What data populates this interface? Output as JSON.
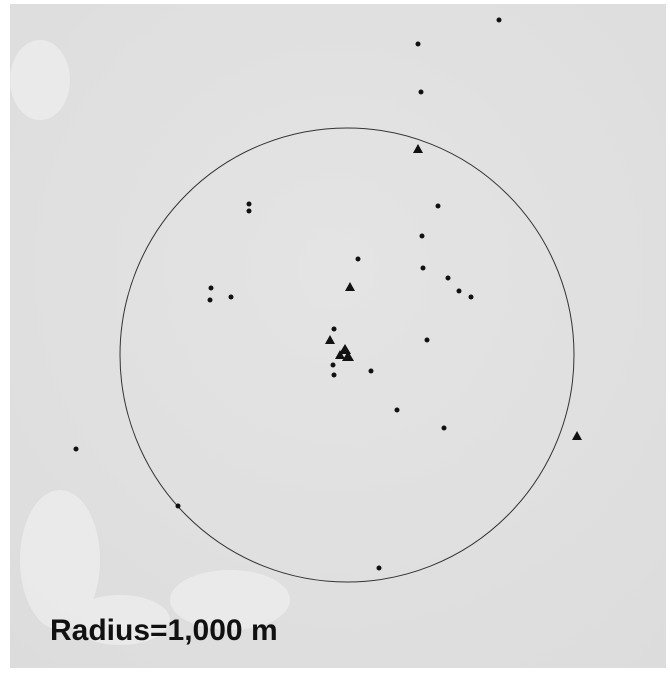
{
  "map": {
    "label": "Radius=1,000 m"
  }
}
